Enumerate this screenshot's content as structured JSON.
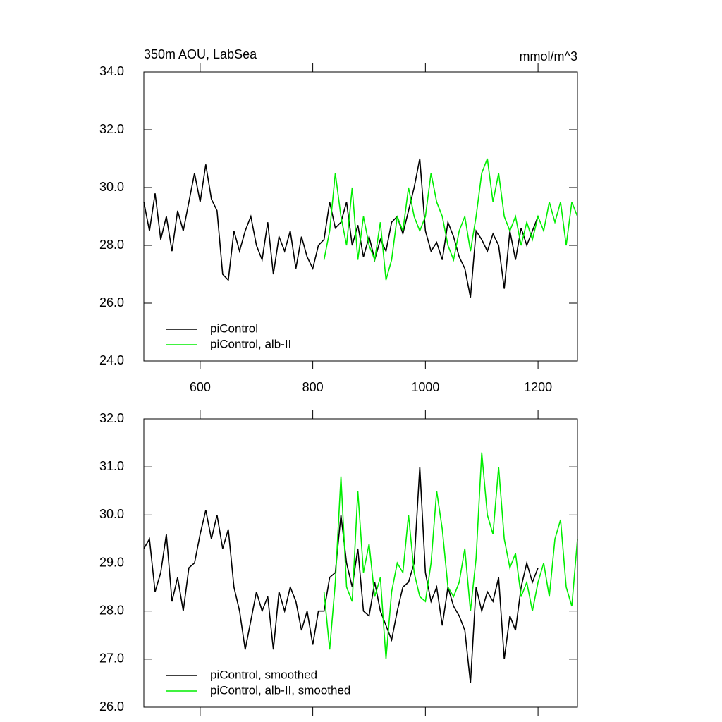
{
  "chart_data": [
    {
      "type": "line",
      "title": "350m AOU, LabSea",
      "units": "mmol/m^3",
      "xlim": [
        500,
        1270
      ],
      "ylim": [
        24,
        34
      ],
      "xticks": [
        600,
        800,
        1000,
        1200
      ],
      "show_xtick_labels": true,
      "yticks": [
        {
          "value": 24,
          "label": "24.0"
        },
        {
          "value": 26,
          "label": "26.0"
        },
        {
          "value": 28,
          "label": "28.0"
        },
        {
          "value": 30,
          "label": "30.0"
        },
        {
          "value": 32,
          "label": "32.0"
        },
        {
          "value": 34,
          "label": "34.0"
        }
      ],
      "legend": "lower left",
      "series": [
        {
          "name": "piControl",
          "color": "#000000",
          "x": [
            500,
            510,
            520,
            530,
            540,
            550,
            560,
            570,
            580,
            590,
            600,
            610,
            620,
            630,
            640,
            650,
            660,
            670,
            680,
            690,
            700,
            710,
            720,
            730,
            740,
            750,
            760,
            770,
            780,
            790,
            800,
            810,
            820,
            830,
            840,
            850,
            860,
            870,
            880,
            890,
            900,
            910,
            920,
            930,
            940,
            950,
            960,
            970,
            980,
            990,
            1000,
            1010,
            1020,
            1030,
            1040,
            1050,
            1060,
            1070,
            1080,
            1090,
            1100,
            1110,
            1120,
            1130,
            1140,
            1150,
            1160,
            1170,
            1180,
            1190,
            1200
          ],
          "values": [
            29.5,
            28.5,
            29.8,
            28.2,
            29.0,
            27.8,
            29.2,
            28.5,
            29.5,
            30.5,
            29.5,
            30.8,
            29.6,
            29.2,
            27.0,
            26.8,
            28.5,
            27.8,
            28.5,
            29.0,
            28.0,
            27.5,
            28.8,
            27.0,
            28.3,
            27.8,
            28.5,
            27.2,
            28.3,
            27.6,
            27.2,
            28.0,
            28.2,
            29.5,
            28.6,
            28.8,
            29.5,
            28.0,
            28.7,
            27.6,
            28.3,
            27.5,
            28.2,
            27.8,
            28.8,
            29.0,
            28.4,
            29.2,
            30.0,
            31.0,
            28.5,
            27.8,
            28.1,
            27.5,
            28.8,
            28.3,
            27.6,
            27.2,
            26.2,
            28.5,
            28.2,
            27.8,
            28.4,
            28.0,
            26.5,
            28.5,
            27.5,
            28.6,
            28.0,
            28.5,
            29.0
          ]
        },
        {
          "name": "piControl, alb-II",
          "color": "#00ee00",
          "x": [
            820,
            830,
            840,
            850,
            860,
            870,
            880,
            890,
            900,
            910,
            920,
            930,
            940,
            950,
            960,
            970,
            980,
            990,
            1000,
            1010,
            1020,
            1030,
            1040,
            1050,
            1060,
            1070,
            1080,
            1090,
            1100,
            1110,
            1120,
            1130,
            1140,
            1150,
            1160,
            1170,
            1180,
            1190,
            1200,
            1210,
            1220,
            1230,
            1240,
            1250,
            1260,
            1270
          ],
          "values": [
            27.5,
            28.5,
            30.5,
            29.0,
            28.0,
            30.0,
            27.5,
            29.0,
            28.0,
            27.5,
            28.8,
            26.8,
            27.5,
            29.0,
            28.5,
            30.0,
            29.0,
            28.5,
            29.0,
            30.5,
            29.5,
            29.0,
            28.0,
            27.5,
            28.5,
            29.0,
            27.8,
            29.0,
            30.5,
            31.0,
            29.5,
            30.5,
            29.0,
            28.5,
            29.0,
            28.0,
            28.8,
            28.2,
            29.0,
            28.5,
            29.5,
            28.8,
            29.5,
            28.0,
            29.5,
            29.0
          ]
        }
      ]
    },
    {
      "type": "line",
      "xlim": [
        500,
        1270
      ],
      "ylim": [
        26,
        32
      ],
      "xticks": [
        600,
        800,
        1000,
        1200
      ],
      "show_xtick_labels": false,
      "yticks": [
        {
          "value": 26,
          "label": "26.0"
        },
        {
          "value": 27,
          "label": "27.0"
        },
        {
          "value": 28,
          "label": "28.0"
        },
        {
          "value": 29,
          "label": "29.0"
        },
        {
          "value": 30,
          "label": "30.0"
        },
        {
          "value": 31,
          "label": "31.0"
        },
        {
          "value": 32,
          "label": "32.0"
        }
      ],
      "legend": "lower left",
      "series": [
        {
          "name": "piControl, smoothed",
          "color": "#000000",
          "x": [
            500,
            510,
            520,
            530,
            540,
            550,
            560,
            570,
            580,
            590,
            600,
            610,
            620,
            630,
            640,
            650,
            660,
            670,
            680,
            690,
            700,
            710,
            720,
            730,
            740,
            750,
            760,
            770,
            780,
            790,
            800,
            810,
            820,
            830,
            840,
            850,
            860,
            870,
            880,
            890,
            900,
            910,
            920,
            930,
            940,
            950,
            960,
            970,
            980,
            990,
            1000,
            1010,
            1020,
            1030,
            1040,
            1050,
            1060,
            1070,
            1080,
            1090,
            1100,
            1110,
            1120,
            1130,
            1140,
            1150,
            1160,
            1170,
            1180,
            1190,
            1200
          ],
          "values": [
            29.3,
            29.5,
            28.4,
            28.8,
            29.6,
            28.2,
            28.7,
            28.0,
            28.9,
            29.0,
            29.6,
            30.1,
            29.5,
            30.0,
            29.3,
            29.7,
            28.5,
            28.0,
            27.2,
            27.8,
            28.4,
            28.0,
            28.3,
            27.2,
            28.4,
            28.0,
            28.5,
            28.2,
            27.6,
            28.0,
            27.3,
            28.0,
            28.0,
            28.7,
            28.8,
            30.0,
            29.0,
            28.5,
            29.3,
            28.0,
            27.9,
            28.6,
            28.0,
            27.7,
            27.4,
            28.0,
            28.5,
            28.6,
            29.0,
            31.0,
            28.8,
            28.2,
            28.5,
            27.7,
            28.5,
            28.1,
            27.9,
            27.6,
            26.5,
            28.5,
            28.0,
            28.4,
            28.2,
            28.7,
            27.0,
            27.9,
            27.6,
            28.5,
            29.0,
            28.6,
            28.9
          ]
        },
        {
          "name": "piControl, alb-II, smoothed",
          "color": "#00ee00",
          "x": [
            820,
            830,
            840,
            850,
            860,
            870,
            880,
            890,
            900,
            910,
            920,
            930,
            940,
            950,
            960,
            970,
            980,
            990,
            1000,
            1010,
            1020,
            1030,
            1040,
            1050,
            1060,
            1070,
            1080,
            1090,
            1100,
            1110,
            1120,
            1130,
            1140,
            1150,
            1160,
            1170,
            1180,
            1190,
            1200,
            1210,
            1220,
            1230,
            1240,
            1250,
            1260,
            1270
          ],
          "values": [
            28.4,
            27.2,
            28.6,
            30.8,
            28.5,
            28.2,
            30.5,
            28.8,
            29.4,
            28.3,
            28.7,
            27.0,
            28.4,
            29.0,
            28.8,
            30.0,
            28.8,
            28.3,
            28.2,
            29.0,
            30.5,
            29.7,
            28.5,
            28.3,
            28.6,
            29.3,
            28.0,
            29.1,
            31.3,
            30.0,
            29.6,
            31.0,
            29.5,
            28.9,
            29.2,
            28.3,
            28.6,
            28.0,
            28.6,
            29.0,
            28.3,
            29.5,
            29.9,
            28.5,
            28.1,
            29.5
          ]
        }
      ]
    }
  ]
}
